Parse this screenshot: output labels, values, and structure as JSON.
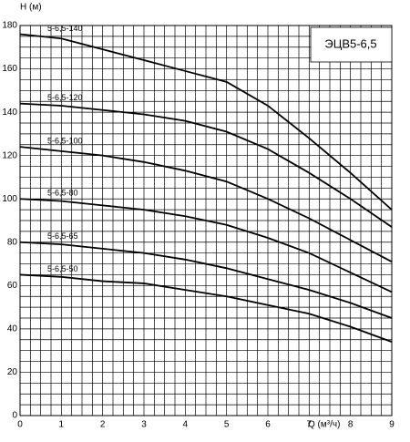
{
  "chart_data": {
    "type": "line",
    "title": "ЭЦВ5-6,5",
    "y_label": "H (м)",
    "x_label": "Q (м³/ч)",
    "x": [
      0,
      1,
      2,
      3,
      4,
      5,
      6,
      7,
      8,
      9
    ],
    "series": [
      {
        "name": "5-6,5-140",
        "color": "#000000",
        "values": [
          176,
          174,
          169,
          164,
          159,
          154,
          143,
          128,
          112,
          95
        ]
      },
      {
        "name": "5-6,5-120",
        "color": "#000000",
        "values": [
          144,
          143,
          141,
          139,
          136,
          131,
          123,
          112,
          100,
          87
        ]
      },
      {
        "name": "5-6,5-100",
        "color": "#000000",
        "values": [
          124,
          122,
          120,
          117,
          113,
          108,
          100,
          91,
          81,
          71
        ]
      },
      {
        "name": "5-6,5-80",
        "color": "#000000",
        "values": [
          100,
          99,
          97,
          95,
          92,
          88,
          82,
          75,
          66,
          57
        ]
      },
      {
        "name": "5-6,5-65",
        "color": "#000000",
        "values": [
          80,
          79,
          77,
          75,
          72,
          68,
          63,
          58,
          52,
          45
        ]
      },
      {
        "name": "5-6,5-50",
        "color": "#000000",
        "values": [
          65,
          64,
          62,
          61,
          58,
          55,
          51,
          47,
          41,
          34
        ]
      }
    ],
    "xlim": [
      0,
      9
    ],
    "ylim": [
      0,
      180
    ],
    "xticks": [
      0,
      1,
      2,
      3,
      4,
      5,
      6,
      7,
      8,
      9
    ],
    "yticks": [
      0,
      20,
      40,
      60,
      80,
      100,
      120,
      140,
      160,
      180
    ],
    "grid": true,
    "x_grid": [
      0,
      0.25,
      0.5,
      0.75,
      1,
      1.25,
      1.5,
      1.75,
      2,
      2.25,
      2.5,
      2.75,
      3,
      3.25,
      3.5,
      3.75,
      4,
      4.25,
      4.5,
      4.75,
      5,
      5.25,
      5.5,
      5.75,
      6,
      6.25,
      6.5,
      6.75,
      7,
      7.25,
      7.5,
      7.75,
      8,
      8.25,
      8.5,
      8.75,
      9
    ],
    "y_grid": [
      0,
      5,
      10,
      15,
      20,
      25,
      30,
      35,
      40,
      45,
      50,
      55,
      60,
      65,
      70,
      75,
      80,
      85,
      90,
      95,
      100,
      105,
      110,
      115,
      120,
      125,
      130,
      135,
      140,
      145,
      150,
      155,
      160,
      165,
      170,
      175,
      180
    ]
  }
}
